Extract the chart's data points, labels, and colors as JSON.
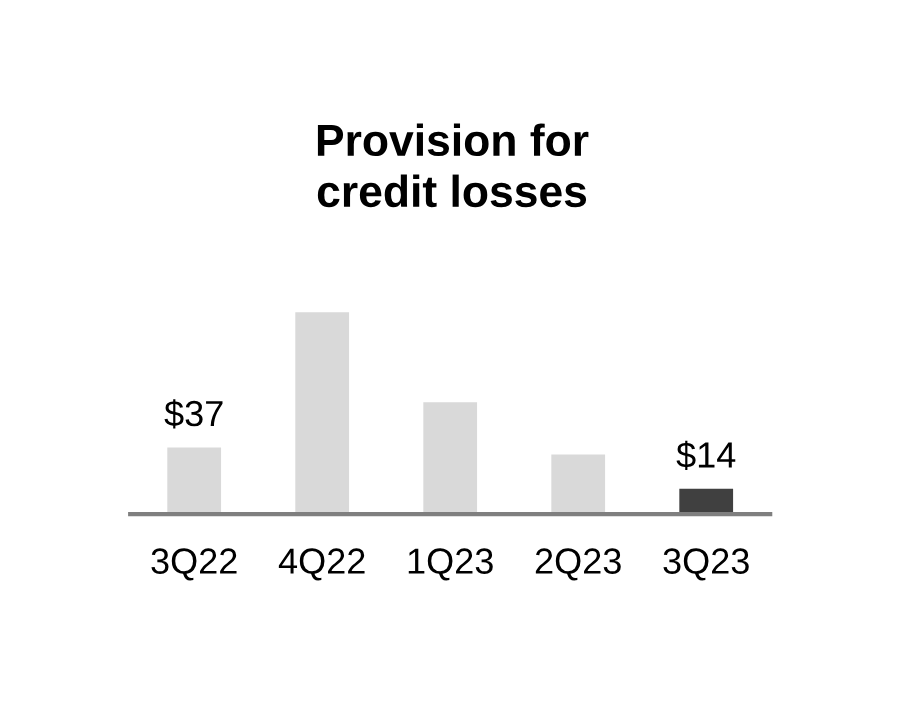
{
  "chart_data": {
    "type": "bar",
    "title": "Provision for\ncredit losses",
    "categories": [
      "3Q22",
      "4Q22",
      "1Q23",
      "2Q23",
      "3Q23"
    ],
    "values": [
      37,
      112,
      62,
      33,
      14
    ],
    "colors": [
      "#d9d9d9",
      "#d9d9d9",
      "#d9d9d9",
      "#d9d9d9",
      "#404040"
    ],
    "value_labels": [
      "$37",
      null,
      null,
      null,
      "$14"
    ],
    "grid": false,
    "legend": false
  }
}
